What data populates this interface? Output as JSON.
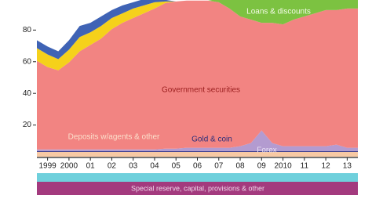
{
  "chart_data": {
    "type": "area",
    "x": [
      1998.5,
      1999,
      1999.5,
      2000,
      2000.5,
      2001,
      2001.5,
      2002,
      2002.5,
      2003,
      2003.5,
      2004,
      2004.5,
      2005,
      2005.5,
      2006,
      2006.5,
      2007,
      2007.5,
      2008,
      2008.5,
      2009,
      2009.5,
      2010,
      2010.5,
      2011,
      2011.5,
      2012,
      2012.5,
      2013,
      2013.5
    ],
    "series": [
      {
        "name": "Deposits w/agents & other",
        "color": "#f7c9a4",
        "values": [
          3,
          3,
          3,
          3,
          3,
          3,
          3,
          3,
          3,
          3,
          3,
          3,
          3,
          3,
          3,
          3,
          3,
          3,
          3,
          3,
          3,
          3,
          3,
          3,
          3,
          3,
          3,
          3,
          3,
          3,
          3
        ]
      },
      {
        "name": "Gold & coin",
        "color": "#3b3d8f",
        "values": [
          0.6,
          0.6,
          0.6,
          0.6,
          0.6,
          0.6,
          0.6,
          0.6,
          0.6,
          0.6,
          0.6,
          0.6,
          0.6,
          0.6,
          0.6,
          0.6,
          0.6,
          0.6,
          0.6,
          0.6,
          0.6,
          0.6,
          0.6,
          0.6,
          0.6,
          0.6,
          0.6,
          0.6,
          0.6,
          0.6,
          0.6
        ]
      },
      {
        "name": "Forex",
        "color": "#b39bd0",
        "values": [
          1,
          1,
          1,
          1,
          1,
          1,
          1,
          1,
          1,
          1,
          1,
          1,
          1.5,
          1.5,
          2,
          2,
          2,
          2,
          2,
          3,
          5,
          13,
          5,
          3,
          3,
          3,
          3,
          3,
          4,
          2,
          2
        ]
      },
      {
        "name": "Government securities",
        "color": "#f28482",
        "values": [
          56,
          52,
          50,
          55,
          62,
          66,
          70,
          76,
          80,
          83,
          86,
          89,
          92,
          93,
          93,
          93,
          93,
          92,
          88,
          82,
          78,
          68,
          76,
          77,
          80,
          82,
          84,
          86,
          85,
          88,
          88
        ]
      },
      {
        "color": "#f5d11b",
        "values": [
          8,
          8,
          7,
          8,
          9,
          8,
          8,
          7,
          6,
          6,
          5,
          4,
          1,
          0,
          0,
          0,
          0,
          0,
          0,
          0,
          0,
          0,
          0,
          0,
          0,
          0,
          0,
          0,
          0,
          0,
          0
        ]
      },
      {
        "color": "#3f63b5",
        "values": [
          5,
          5,
          5,
          6,
          7,
          6,
          6,
          5,
          5,
          4,
          4,
          3,
          1,
          0,
          0,
          0,
          0,
          0,
          0,
          0,
          0,
          0,
          0,
          0,
          0,
          0,
          0,
          0,
          0,
          0,
          0
        ]
      },
      {
        "name": "Loans & discounts",
        "color": "#7cc241",
        "values": [
          0,
          0,
          0,
          0,
          0,
          0,
          0,
          0,
          0,
          0,
          0,
          0,
          0,
          0,
          0,
          0,
          0,
          2,
          8,
          12,
          14,
          16,
          15,
          16,
          14,
          12,
          10,
          8,
          8,
          7,
          7
        ]
      }
    ],
    "xlim": [
      1998.5,
      2013.5
    ],
    "ylim": [
      0,
      99
    ],
    "xticks": [
      {
        "value": 1999,
        "label": "1999"
      },
      {
        "value": 2000,
        "label": "2000"
      },
      {
        "value": 2001,
        "label": "01"
      },
      {
        "value": 2002,
        "label": "02"
      },
      {
        "value": 2003,
        "label": "03"
      },
      {
        "value": 2004,
        "label": "04"
      },
      {
        "value": 2005,
        "label": "05"
      },
      {
        "value": 2006,
        "label": "06"
      },
      {
        "value": 2007,
        "label": "07"
      },
      {
        "value": 2008,
        "label": "08"
      },
      {
        "value": 2009,
        "label": "09"
      },
      {
        "value": 2010,
        "label": "2010"
      },
      {
        "value": 2011,
        "label": "11"
      },
      {
        "value": 2012,
        "label": "12"
      },
      {
        "value": 2013,
        "label": "13"
      }
    ],
    "yticks": [
      20,
      40,
      60,
      80
    ],
    "bottom_label": "Special reserve, capital, provisions & other"
  }
}
